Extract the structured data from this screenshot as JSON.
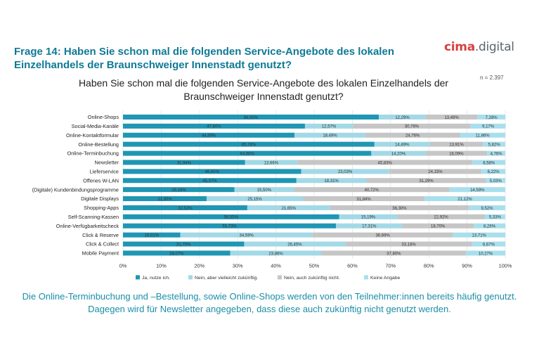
{
  "slide": {
    "title": "Frage 14: Haben Sie schon mal die folgenden Service-Angebote des lokalen Einzelhandels der Braunschweiger Innenstadt genutzt?",
    "logo_main": "cima",
    "logo_suffix": ".digital",
    "sample_size": "n = 2.397",
    "footer": "Die Online-Terminbuchung und –Bestellung, sowie Online-Shops werden von den Teilnehmer:innen bereits häufig genutzt. Dagegen wird für Newsletter angegeben, dass diese auch zukünftig nicht genutzt werden."
  },
  "colors": {
    "title": "#0f7a96",
    "footer": "#1a8ea8",
    "logo_accent": "#d64040",
    "series": [
      "#1f96b4",
      "#a3d9e6",
      "#c6c6c6",
      "#a9dfed"
    ]
  },
  "chart_data": {
    "type": "bar",
    "orientation": "horizontal",
    "stacked": true,
    "title": "Haben Sie schon mal die folgenden Service-Angebote des lokalen Einzelhandels der Braunschweiger Innenstadt genutzt?",
    "categories": [
      "Online-Shops",
      "Social-Media-Kanäle",
      "Online-Kontaktformular",
      "Online-Bestellung",
      "Online-Terminbuchung",
      "Newsletter",
      "Lieferservice",
      "Offenes W-LAN",
      "(Digitale) Kundenbindungsprogramme",
      "Digitale Displays",
      "Shopping-Apps",
      "Self-Scanning-Kassen",
      "Online-Verfügbarkeitscheck",
      "Click & Reserve",
      "Click & Collect",
      "Mobile Payment"
    ],
    "series": [
      {
        "name": "Ja, nutze ich.",
        "values": [
          66.93,
          47.6,
          44.89,
          65.78,
          64.96,
          31.94,
          46.6,
          45.37,
          29.18,
          21.9,
          32.52,
          56.55,
          55.73,
          15.01,
          31.7,
          28.07
        ],
        "labels": [
          "66,93%",
          "47,60%",
          "44,89%",
          "65,78%",
          "64,96%",
          "31,94%",
          "46,60%",
          "45,37%",
          "29,18%",
          "21,90%",
          "32,52%",
          "56,55%",
          "55,73%",
          "15,01%",
          "31,70%",
          "28,07%"
        ]
      },
      {
        "name": "Nein, aber vielleicht zukünftig.",
        "values": [
          12.29,
          12.57,
          18.49,
          14.49,
          14.2,
          13.66,
          23.03,
          18.31,
          15.5,
          25.15,
          21.65,
          15.19,
          17.31,
          34.59,
          26.45,
          23.86
        ],
        "labels": [
          "12,29%",
          "12,57%",
          "18,49%",
          "14,49%",
          "14,20%",
          "13,66%",
          "23,03%",
          "18,31%",
          "15,50%",
          "25,15%",
          "21,65%",
          "15,19%",
          "17,31%",
          "34,59%",
          "26,45%",
          "23,86%"
        ]
      },
      {
        "name": "Nein, auch zukünftig nicht.",
        "values": [
          13.49,
          30.76,
          24.76,
          13.91,
          16.09,
          45.83,
          24.15,
          31.29,
          40.72,
          31.84,
          36.3,
          22.92,
          18.7,
          36.69,
          33.18,
          37.8
        ],
        "labels": [
          "13,49%",
          "30,76%",
          "24,76%",
          "13,91%",
          "16,09%",
          "45,83%",
          "24,15%",
          "31,29%",
          "40,72%",
          "31,84%",
          "36,30%",
          "22,92%",
          "18,70%",
          "36,69%",
          "33,18%",
          "37,80%"
        ]
      },
      {
        "name": "Keine Angabe",
        "values": [
          7.28,
          9.17,
          11.86,
          5.82,
          4.76,
          8.58,
          6.22,
          5.03,
          14.59,
          21.12,
          9.52,
          5.33,
          8.26,
          13.71,
          8.67,
          10.27
        ],
        "labels": [
          "7,28%",
          "9,17%",
          "11,86%",
          "5,82%",
          "4,76%",
          "8,58%",
          "6,22%",
          "5,03%",
          "14,59%",
          "21,12%",
          "9,52%",
          "5,33%",
          "8,26%",
          "13,71%",
          "8,67%",
          "10,27%"
        ]
      }
    ],
    "xlim": [
      0,
      100
    ],
    "xticks": [
      "0%",
      "10%",
      "20%",
      "30%",
      "40%",
      "50%",
      "60%",
      "70%",
      "80%",
      "90%",
      "100%"
    ],
    "grid": true,
    "legend": "bottom"
  }
}
